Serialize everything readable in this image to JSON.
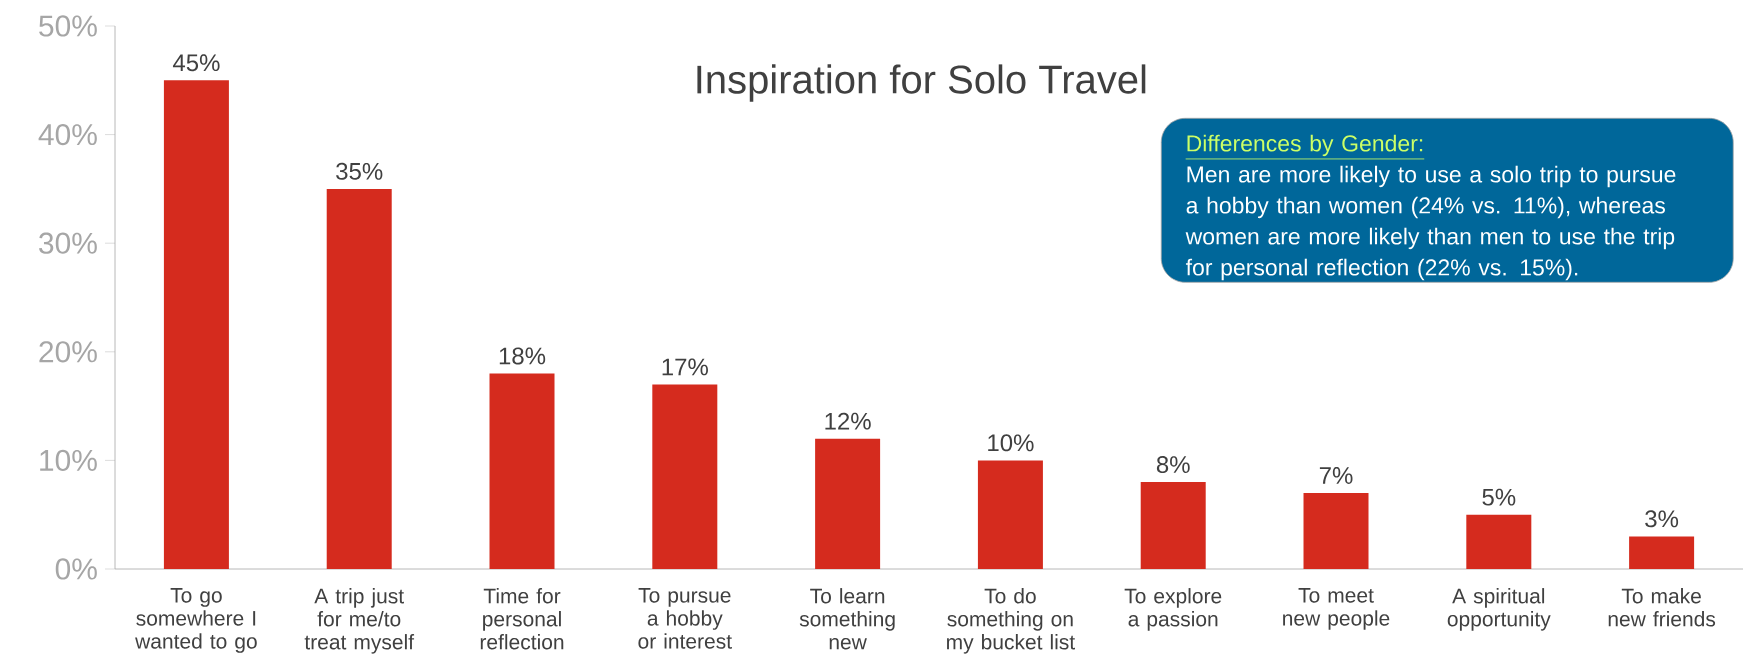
{
  "chart_data": {
    "type": "bar",
    "title": "Inspiration for Solo Travel",
    "categories": [
      "To go somewhere I wanted to go",
      "A trip just for me/to treat myself",
      "Time for personal reflection",
      "To pursue a hobby or interest",
      "To learn something new",
      "To do something on my bucket list",
      "To explore a passion",
      "To meet new people",
      "A spiritual opportunity",
      "To make new friends"
    ],
    "values": [
      45,
      35,
      18,
      17,
      12,
      10,
      8,
      7,
      5,
      3
    ],
    "value_labels": [
      "45%",
      "35%",
      "18%",
      "17%",
      "12%",
      "10%",
      "8%",
      "7%",
      "5%",
      "3%"
    ],
    "color": "#d52b1e",
    "ylim": [
      0,
      50
    ],
    "yticks": [
      {
        "value": 0,
        "label": "0%"
      },
      {
        "value": 10,
        "label": "10%"
      },
      {
        "value": 20,
        "label": "20%"
      },
      {
        "value": 30,
        "label": "30%"
      },
      {
        "value": 40,
        "label": "40%"
      },
      {
        "value": 50,
        "label": "50%"
      }
    ],
    "annotations": [
      "Differences by Gender:",
      "Men are more likely to use a solo trip to pursue a hobby than women (24% vs. 11%), whereas women are more likely than men to use the trip for personal reflection (22% vs. 15%)."
    ]
  }
}
